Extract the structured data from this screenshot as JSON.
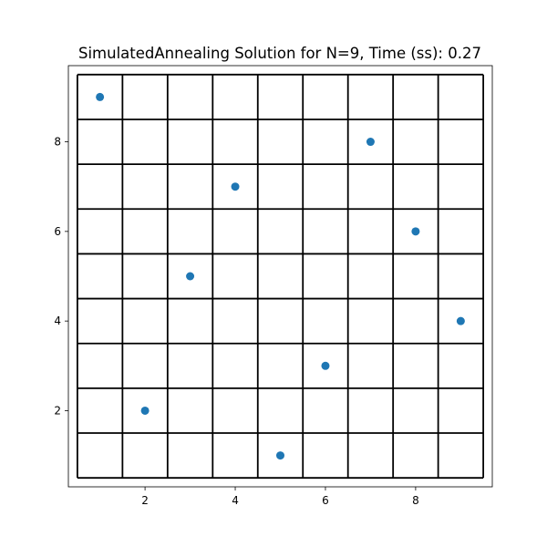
{
  "chart_data": {
    "type": "scatter",
    "title": "SimulatedAnnealing Solution for N=9, Time (ss): 0.27",
    "xlabel": "",
    "ylabel": "",
    "xlim": [
      0.3,
      9.7
    ],
    "ylim": [
      0.3,
      9.7
    ],
    "xticks": [
      2,
      4,
      6,
      8
    ],
    "yticks": [
      2,
      4,
      6,
      8
    ],
    "grid": "board lines at half-integers from 0.5 to 9.5",
    "board_size": 9,
    "points": [
      {
        "x": 1,
        "y": 9
      },
      {
        "x": 2,
        "y": 2
      },
      {
        "x": 3,
        "y": 5
      },
      {
        "x": 4,
        "y": 7
      },
      {
        "x": 5,
        "y": 1
      },
      {
        "x": 6,
        "y": 3
      },
      {
        "x": 7,
        "y": 8
      },
      {
        "x": 8,
        "y": 6
      },
      {
        "x": 9,
        "y": 4
      }
    ],
    "colors": {
      "marker": "#1f77b4",
      "board_lines": "#000000",
      "axes": "#000000",
      "background": "#ffffff"
    }
  }
}
